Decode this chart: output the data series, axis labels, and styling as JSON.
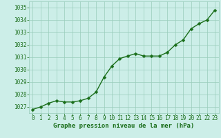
{
  "x": [
    0,
    1,
    2,
    3,
    4,
    5,
    6,
    7,
    8,
    9,
    10,
    11,
    12,
    13,
    14,
    15,
    16,
    17,
    18,
    19,
    20,
    21,
    22,
    23
  ],
  "y": [
    1026.8,
    1027.0,
    1027.3,
    1027.5,
    1027.4,
    1027.4,
    1027.5,
    1027.7,
    1028.2,
    1029.4,
    1030.3,
    1030.9,
    1031.1,
    1031.3,
    1031.1,
    1031.1,
    1031.1,
    1031.4,
    1032.0,
    1032.4,
    1033.3,
    1033.7,
    1034.0,
    1034.8
  ],
  "ylim": [
    1026.5,
    1035.5
  ],
  "yticks": [
    1027,
    1028,
    1029,
    1030,
    1031,
    1032,
    1033,
    1034,
    1035
  ],
  "xticks": [
    0,
    1,
    2,
    3,
    4,
    5,
    6,
    7,
    8,
    9,
    10,
    11,
    12,
    13,
    14,
    15,
    16,
    17,
    18,
    19,
    20,
    21,
    22,
    23
  ],
  "xlabel": "Graphe pression niveau de la mer (hPa)",
  "line_color": "#1a6e1a",
  "marker_color": "#1a6e1a",
  "bg_color": "#cceee8",
  "grid_color": "#99ccbb",
  "tick_label_color": "#1a6e1a",
  "xlabel_color": "#1a6e1a",
  "line_width": 1.0,
  "marker_size": 2.5,
  "font_size_tick": 5.5,
  "font_size_xlabel": 6.5
}
